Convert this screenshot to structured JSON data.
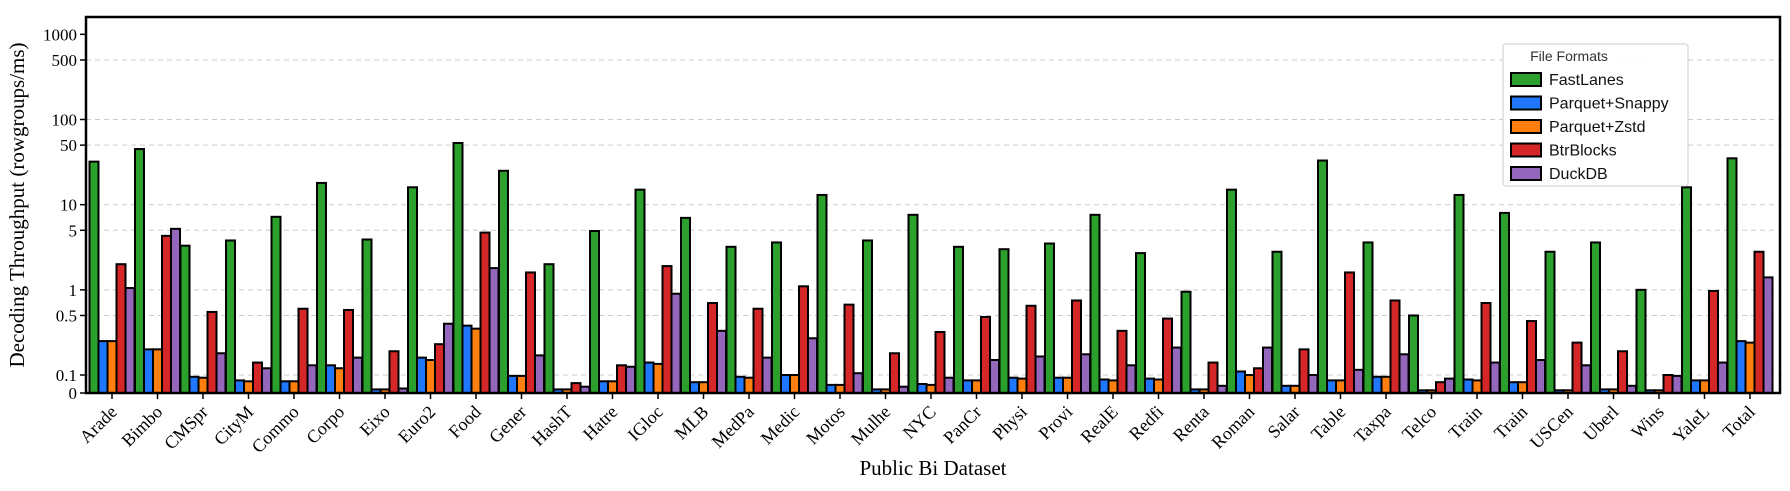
{
  "chart_data": {
    "type": "bar",
    "title": "",
    "xlabel": "Public Bi Dataset",
    "ylabel": "Decoding Throughput (rowgroups/ms)",
    "yscale": "symlog",
    "ylim": [
      0,
      1000
    ],
    "yticks": [
      {
        "value": 0,
        "label": "0"
      },
      {
        "value": 0.1,
        "label": "0.1"
      },
      {
        "value": 0.5,
        "label": "0.5"
      },
      {
        "value": 1,
        "label": "1"
      },
      {
        "value": 5,
        "label": "5"
      },
      {
        "value": 10,
        "label": "10"
      },
      {
        "value": 50,
        "label": "50"
      },
      {
        "value": 100,
        "label": "100"
      },
      {
        "value": 500,
        "label": "500"
      },
      {
        "value": 1000,
        "label": "1000"
      }
    ],
    "grid": "horizontal dashed",
    "legend": {
      "title": "File Formats",
      "position": "top-right"
    },
    "categories": [
      "Arade",
      "Bimbo",
      "CMSpr",
      "CityM",
      "Commo",
      "Corpo",
      "Eixo",
      "Euro2",
      "Food",
      "Gener",
      "HashT",
      "Hatre",
      "IGloc",
      "MLB",
      "MedPa",
      "Medic",
      "Motos",
      "Mulhe",
      "NYC",
      "PanCr",
      "Physi",
      "Provi",
      "RealE",
      "Redfi",
      "Renta",
      "Roman",
      "Salar",
      "Table",
      "Taxpa",
      "Telco",
      "Train",
      "Train",
      "USCen",
      "Uberl",
      "Wins",
      "YaleL",
      "Total"
    ],
    "series": [
      {
        "name": "FastLanes",
        "color": "#2ca02c",
        "values": [
          32,
          45,
          3.3,
          3.8,
          7.2,
          18,
          3.9,
          16,
          53,
          25,
          2.0,
          4.9,
          15,
          7.0,
          3.2,
          3.6,
          13,
          3.8,
          7.6,
          3.2,
          3.0,
          3.5,
          7.6,
          2.7,
          0.95,
          15,
          2.8,
          33,
          3.6,
          0.5,
          13,
          8,
          2.8,
          3.6,
          1.0,
          16,
          35
        ]
      },
      {
        "name": "Parquet+Snappy",
        "color": "#1f77ff",
        "values": [
          0.25,
          0.2,
          0.09,
          0.07,
          0.065,
          0.13,
          0.02,
          0.16,
          0.38,
          0.095,
          0.02,
          0.065,
          0.14,
          0.06,
          0.09,
          0.1,
          0.045,
          0.02,
          0.05,
          0.07,
          0.085,
          0.085,
          0.075,
          0.08,
          0.02,
          0.11,
          0.04,
          0.07,
          0.09,
          0.015,
          0.075,
          0.06,
          0.015,
          0.02,
          0.015,
          0.07,
          0.25
        ]
      },
      {
        "name": "Parquet+Zstd",
        "color": "#ff7f0e",
        "values": [
          0.25,
          0.2,
          0.085,
          0.065,
          0.065,
          0.12,
          0.02,
          0.15,
          0.35,
          0.095,
          0.02,
          0.065,
          0.135,
          0.06,
          0.085,
          0.1,
          0.045,
          0.02,
          0.045,
          0.07,
          0.08,
          0.085,
          0.07,
          0.075,
          0.02,
          0.1,
          0.04,
          0.07,
          0.09,
          0.015,
          0.07,
          0.06,
          0.015,
          0.02,
          0.015,
          0.07,
          0.24
        ]
      },
      {
        "name": "BtrBlocks",
        "color": "#d62728",
        "values": [
          2.0,
          4.3,
          0.55,
          0.14,
          0.6,
          0.58,
          0.19,
          0.23,
          4.7,
          1.6,
          0.055,
          0.13,
          1.9,
          0.7,
          0.6,
          1.1,
          0.67,
          0.18,
          0.32,
          0.48,
          0.65,
          0.75,
          0.33,
          0.46,
          0.14,
          0.12,
          0.2,
          1.6,
          0.75,
          0.06,
          0.7,
          0.43,
          0.24,
          0.19,
          0.1,
          0.97,
          2.8
        ]
      },
      {
        "name": "DuckDB",
        "color": "#9467bd",
        "values": [
          1.05,
          5.2,
          0.18,
          0.12,
          0.13,
          0.16,
          0.025,
          0.4,
          1.8,
          0.17,
          0.035,
          0.125,
          0.9,
          0.33,
          0.16,
          0.27,
          0.105,
          0.035,
          0.085,
          0.15,
          0.165,
          0.175,
          0.13,
          0.21,
          0.04,
          0.21,
          0.1,
          0.115,
          0.175,
          0.08,
          0.14,
          0.15,
          0.13,
          0.04,
          0.095,
          0.14,
          1.4
        ]
      }
    ]
  }
}
